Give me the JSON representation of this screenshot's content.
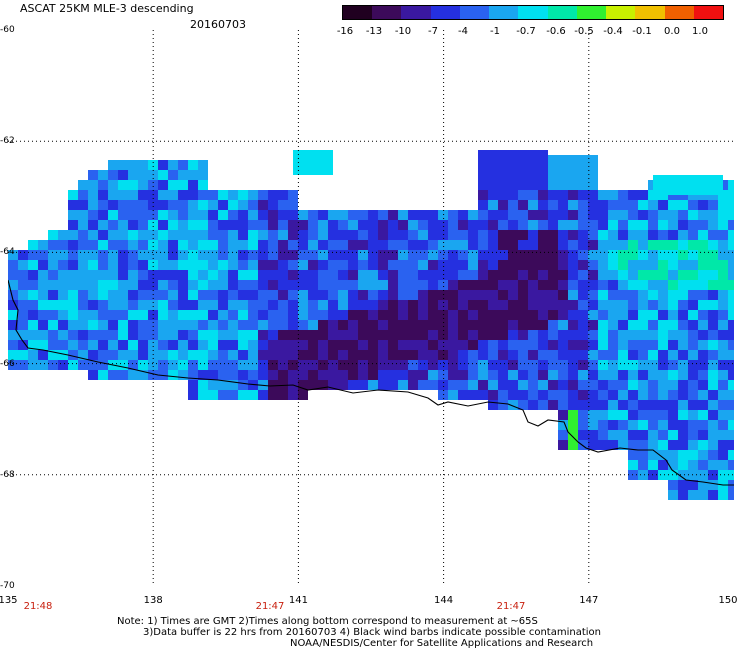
{
  "title": "ASCAT 25KM MLE-3 descending",
  "date": "20160703",
  "colorbar": {
    "labels": [
      "-16",
      "-13",
      "-10",
      "-7",
      "-4",
      "-1",
      "-0.7",
      "-0.6",
      "-0.5",
      "-0.4",
      "-0.1",
      "0.0",
      "1.0"
    ],
    "colors": [
      "#200020",
      "#3c0a5a",
      "#3a18a0",
      "#2530e0",
      "#2a62f0",
      "#1aa6f0",
      "#00e0f0",
      "#00e8a8",
      "#30f030",
      "#c8f000",
      "#f0c000",
      "#f06000",
      "#f01010"
    ]
  },
  "map": {
    "lon_range": [
      135,
      150
    ],
    "lat_range": [
      -70,
      -60
    ],
    "lon_ticks": [
      "135",
      "138",
      "141",
      "144",
      "147",
      "150"
    ],
    "lat_ticks": [
      "-60",
      "-62",
      "-64",
      "-66",
      "-68",
      "-70"
    ],
    "time_labels": [
      "21:48",
      "21:47",
      "21:47"
    ]
  },
  "notes": [
    "Note: 1) Times are GMT 2)Times along bottom correspond to measurement at ~65S",
    "3)Data buffer is 22 hrs from 20160703 4) Black wind barbs indicate possible contamination",
    "NOAA/NESDIS/Center for Satellite Applications and Research"
  ]
}
